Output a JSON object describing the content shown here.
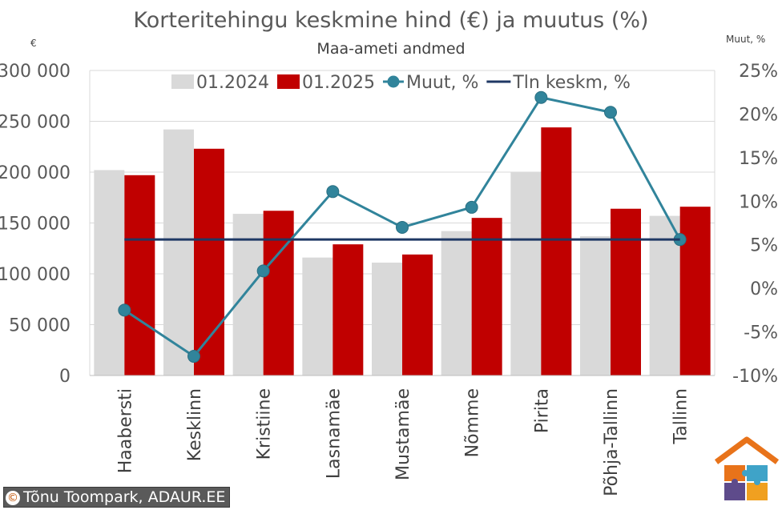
{
  "chart_data": {
    "type": "bar",
    "title": "Korteritehingu keskmine hind (€) ja muutus (%)",
    "subtitle": "Maa-ameti andmed",
    "y_left_unit": "€",
    "y_right_unit": "Muut, %",
    "categories": [
      "Haabersti",
      "Kesklinn",
      "Kristiine",
      "Lasnamäe",
      "Mustamäe",
      "Nõmme",
      "Pirita",
      "Põhja-Tallinn",
      "Tallinn"
    ],
    "series": [
      {
        "name": "01.2024",
        "kind": "bar",
        "axis": "left",
        "color": "#d9d9d9",
        "values": [
          202000,
          242000,
          159000,
          116000,
          111000,
          142000,
          200000,
          137000,
          157000
        ]
      },
      {
        "name": "01.2025",
        "kind": "bar",
        "axis": "left",
        "color": "#c00000",
        "values": [
          197000,
          223000,
          162000,
          129000,
          119000,
          155000,
          244000,
          164000,
          166000
        ]
      },
      {
        "name": "Muut, %",
        "kind": "line-marker",
        "axis": "right",
        "color": "#31849b",
        "values": [
          -2.5,
          -7.8,
          2.0,
          11.1,
          7.0,
          9.3,
          21.9,
          20.2,
          5.6
        ]
      },
      {
        "name": "Tln keskm, %",
        "kind": "line",
        "axis": "right",
        "color": "#1f3864",
        "values": [
          5.6,
          5.6,
          5.6,
          5.6,
          5.6,
          5.6,
          5.6,
          5.6,
          5.6
        ]
      }
    ],
    "y_left": {
      "min": 0,
      "max": 300000,
      "step": 50000,
      "tick_labels": [
        "0",
        "50 000",
        "100 000",
        "150 000",
        "200 000",
        "250 000",
        "300 000"
      ]
    },
    "y_right": {
      "min": -10,
      "max": 25,
      "step": 5,
      "tick_labels": [
        "-10%",
        "-5%",
        "0%",
        "5%",
        "10%",
        "15%",
        "20%",
        "25%"
      ]
    },
    "grid": true,
    "legend_position": "top"
  },
  "credit": {
    "symbol": "©",
    "text": "Tõnu Toompark, ADAUR.EE"
  },
  "logo": {
    "icon": "house-puzzle-logo-icon"
  }
}
